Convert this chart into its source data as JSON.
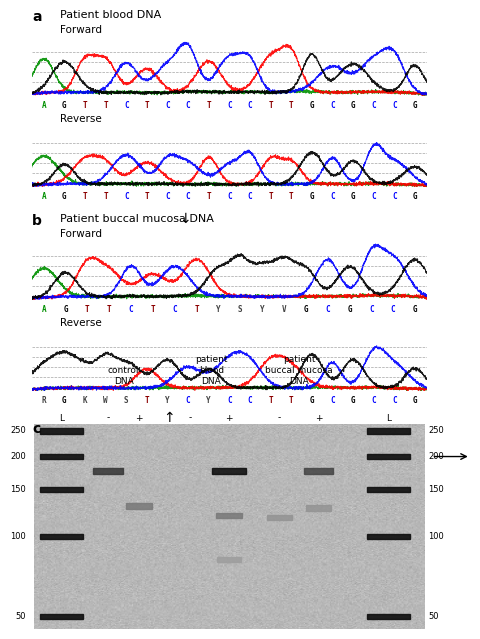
{
  "panel_a_title": "Patient blood DNA",
  "panel_b_title": "Patient buccal mucosa DNA",
  "forward_label": "Forward",
  "reverse_label": "Reverse",
  "bases_forward": [
    "A",
    "G",
    "T",
    "T",
    "C",
    "T",
    "C",
    "C",
    "T",
    "C",
    "C",
    "T",
    "T",
    "G",
    "C",
    "G",
    "C",
    "C",
    "G"
  ],
  "bases_reverse": [
    "A",
    "G",
    "T",
    "T",
    "C",
    "T",
    "C",
    "C",
    "T",
    "C",
    "C",
    "T",
    "T",
    "G",
    "C",
    "G",
    "C",
    "C",
    "G"
  ],
  "bases_forward_b": [
    "A",
    "G",
    "T",
    "T",
    "C",
    "T",
    "C",
    "T",
    "Y",
    "S",
    "Y",
    "V",
    "G",
    "C",
    "G",
    "C",
    "C",
    "G"
  ],
  "bases_reverse_b": [
    "R",
    "G",
    "K",
    "W",
    "S",
    "T",
    "Y",
    "C",
    "Y",
    "C",
    "C",
    "T",
    "T",
    "G",
    "C",
    "G",
    "C",
    "C",
    "G"
  ],
  "color_A": "#009000",
  "color_T": "#ff0000",
  "color_G": "#000000",
  "color_C": "#0000ff",
  "color_bg_seq": "#ebebeb",
  "col_labels": [
    "L",
    "-",
    "+",
    "-",
    "+",
    "-",
    "+",
    "L"
  ],
  "group_labels": [
    "control\nDNA",
    "patient\nblood\nDNA",
    "patient\nbuccal mucosa\nDNA"
  ],
  "ladder_bps": [
    250,
    200,
    150,
    100,
    50
  ],
  "white": "#ffffff",
  "black": "#000000"
}
